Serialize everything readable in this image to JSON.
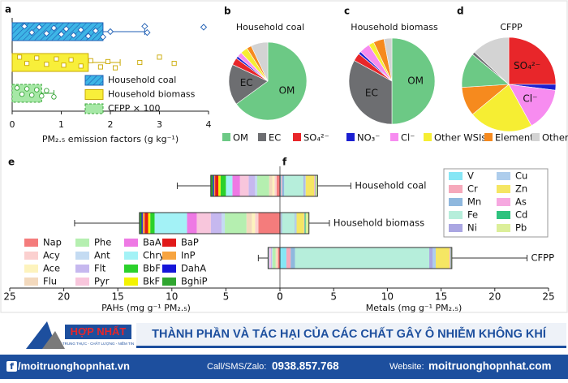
{
  "chart_data": [
    {
      "type": "bar",
      "label": "a",
      "orientation": "horizontal",
      "categories": [
        "Household coal",
        "Household biomass",
        "CFPP × 100"
      ],
      "values": [
        1.85,
        1.55,
        0.6
      ],
      "upper": [
        2.7,
        2.2,
        0.85
      ],
      "points": [
        [
          0.25,
          0.4,
          0.55,
          0.7,
          0.85,
          1.0,
          1.1,
          1.25,
          1.4,
          1.55,
          1.7,
          1.85,
          2.0,
          2.7,
          2.75,
          3.9
        ],
        [
          0.15,
          0.3,
          0.5,
          0.7,
          0.9,
          1.05,
          1.2,
          1.4,
          1.6,
          1.8,
          1.95,
          2.1,
          2.6,
          3.0,
          3.3
        ],
        [
          0.1,
          0.2,
          0.3,
          0.4,
          0.5,
          0.6,
          0.7,
          0.85
        ]
      ],
      "colors": [
        "#3db5e6",
        "#f8ef3a",
        "#a6e8a6"
      ],
      "edge_colors": [
        "#1f5fb4",
        "#c9a800",
        "#3aa63a"
      ],
      "styles": [
        "hatched",
        "solid",
        "dashed"
      ],
      "markers": [
        "diamond",
        "square",
        "circle"
      ],
      "xlim": [
        0,
        4
      ],
      "xticks": [
        0,
        1,
        2,
        3,
        4
      ],
      "xlabel": "PM₂.₅ emission factors (g kg⁻¹)"
    },
    {
      "type": "pie",
      "label": "b",
      "title": "Household coal",
      "values": [
        65,
        17,
        3,
        1,
        2,
        3,
        2,
        7
      ],
      "labels": [
        "OM",
        "EC",
        null,
        null,
        null,
        null,
        null,
        null
      ],
      "colors": [
        "#6cc985",
        "#6d6e71",
        "#e8262a",
        "#1b1fd1",
        "#f78cf0",
        "#f6ee33",
        "#f68a1e",
        "#d3d3d3"
      ]
    },
    {
      "type": "pie",
      "label": "c",
      "title": "Household biomass",
      "values": [
        50,
        33,
        3,
        1,
        4,
        2,
        4,
        3
      ],
      "labels": [
        "OM",
        "EC",
        null,
        null,
        null,
        null,
        null,
        null
      ],
      "colors": [
        "#6cc985",
        "#6d6e71",
        "#e8262a",
        "#1b1fd1",
        "#f78cf0",
        "#f6ee33",
        "#f68a1e",
        "#d3d3d3"
      ]
    },
    {
      "type": "pie",
      "label": "d",
      "title": "CFPP",
      "values": [
        25,
        2,
        15,
        22,
        10,
        12,
        1,
        13
      ],
      "labels": [
        "SO₄²⁻",
        null,
        "Cl⁻",
        null,
        null,
        null,
        null,
        null
      ],
      "colors": [
        "#e8262a",
        "#1b1fd1",
        "#f78cf0",
        "#f6ee33",
        "#f68a1e",
        "#6cc985",
        "#6d6e71",
        "#d3d3d3"
      ]
    },
    {
      "type": "stacked-bar",
      "label": "e",
      "orientation": "horizontal",
      "xlim": [
        25,
        0
      ],
      "xticks": [
        25,
        20,
        15,
        10,
        5,
        0
      ],
      "xlabel": "PAHs (mg g⁻¹ PM₂.₅)",
      "upper": [
        9.5,
        19,
        2
      ],
      "series": [
        {
          "name": "Nap",
          "color": "#f47c7c",
          "values": [
            0.3,
            2.0,
            0.2
          ]
        },
        {
          "name": "Acy",
          "color": "#fbd0cf",
          "values": [
            0.2,
            0.3,
            0.05
          ]
        },
        {
          "name": "Ace",
          "color": "#fdf3bd",
          "values": [
            0.2,
            0.3,
            0.05
          ]
        },
        {
          "name": "Flu",
          "color": "#f3d9bd",
          "values": [
            0.3,
            0.5,
            0.1
          ]
        },
        {
          "name": "Phe",
          "color": "#b5efb0",
          "values": [
            1.1,
            2.0,
            0.3
          ]
        },
        {
          "name": "Ant",
          "color": "#c4dbf2",
          "values": [
            0.2,
            0.3,
            0.05
          ]
        },
        {
          "name": "Flt",
          "color": "#c6b8ef",
          "values": [
            0.6,
            1.0,
            0.1
          ]
        },
        {
          "name": "Pyr",
          "color": "#f8c6dc",
          "values": [
            0.8,
            1.3,
            0.1
          ]
        },
        {
          "name": "BaA",
          "color": "#ee79e4",
          "values": [
            0.7,
            0.9,
            0.05
          ]
        },
        {
          "name": "Chry",
          "color": "#a3f2f6",
          "values": [
            0.6,
            3.0,
            0.05
          ]
        },
        {
          "name": "BbF",
          "color": "#2bd12b",
          "values": [
            0.5,
            0.4,
            0.02
          ]
        },
        {
          "name": "BkF",
          "color": "#f3f300",
          "values": [
            0.2,
            0.2,
            0.01
          ]
        },
        {
          "name": "BaP",
          "color": "#e11a1a",
          "values": [
            0.3,
            0.3,
            0.01
          ]
        },
        {
          "name": "InP",
          "color": "#f7a440",
          "values": [
            0.1,
            0.2,
            0.01
          ]
        },
        {
          "name": "DahA",
          "color": "#1515d9",
          "values": [
            0.1,
            0.1,
            0.0
          ]
        },
        {
          "name": "BghiP",
          "color": "#2fa52f",
          "values": [
            0.2,
            0.2,
            0.0
          ]
        }
      ]
    },
    {
      "type": "stacked-bar",
      "label": "f",
      "orientation": "horizontal",
      "categories": [
        "Household coal",
        "Household biomass",
        "CFPP"
      ],
      "xlim": [
        0,
        25
      ],
      "xticks": [
        0,
        5,
        10,
        15,
        20,
        25
      ],
      "xlabel": "Metals (mg g⁻¹ PM₂.₅)",
      "upper": [
        6.6,
        4.6,
        23
      ],
      "series": [
        {
          "name": "V",
          "color": "#86e6f5",
          "values": [
            0.1,
            0.05,
            0.6
          ]
        },
        {
          "name": "Cr",
          "color": "#f6a9bb",
          "values": [
            0.1,
            0.05,
            0.4
          ]
        },
        {
          "name": "Mn",
          "color": "#8fb8de",
          "values": [
            0.2,
            0.1,
            0.4
          ]
        },
        {
          "name": "Fe",
          "color": "#b6eedb",
          "values": [
            1.8,
            1.2,
            12.5
          ]
        },
        {
          "name": "Ni",
          "color": "#aaa6e2",
          "values": [
            0.1,
            0.05,
            0.3
          ]
        },
        {
          "name": "Cu",
          "color": "#aecdec",
          "values": [
            0.1,
            0.1,
            0.3
          ]
        },
        {
          "name": "Zn",
          "color": "#f5e663",
          "values": [
            0.8,
            0.7,
            1.3
          ]
        },
        {
          "name": "As",
          "color": "#f6a8e0",
          "values": [
            0.1,
            0.05,
            0.1
          ]
        },
        {
          "name": "Cd",
          "color": "#2ec27e",
          "values": [
            0.05,
            0.1,
            0.05
          ]
        },
        {
          "name": "Pb",
          "color": "#dcef9a",
          "values": [
            0.15,
            0.3,
            0.05
          ]
        }
      ]
    }
  ],
  "pie_legend": [
    {
      "name": "OM",
      "color": "#6cc985"
    },
    {
      "name": "EC",
      "color": "#6d6e71"
    },
    {
      "name": "SO₄²⁻",
      "color": "#e8262a"
    },
    {
      "name": "NO₃⁻",
      "color": "#1b1fd1"
    },
    {
      "name": "Cl⁻",
      "color": "#f78cf0"
    },
    {
      "name": "Other WSIs",
      "color": "#f6ee33"
    },
    {
      "name": "Element",
      "color": "#f68a1e"
    },
    {
      "name": "Other",
      "color": "#d3d3d3"
    }
  ],
  "banner": {
    "logo": "HỢP NHẤT",
    "tagline": "TRUNG THỰC - CHẤT LƯỢNG - NIỀM TIN",
    "title": "THÀNH PHẦN VÀ TÁC HẠI CỦA CÁC CHẤT GÂY Ô NHIỄM KHÔNG KHÍ",
    "facebook": "/moitruonghopnhat.vn",
    "phone_label": "Call/SMS/Zalo:",
    "phone": "0938.857.768",
    "website_label": "Website:",
    "website": "moitruonghopnhat.com"
  }
}
